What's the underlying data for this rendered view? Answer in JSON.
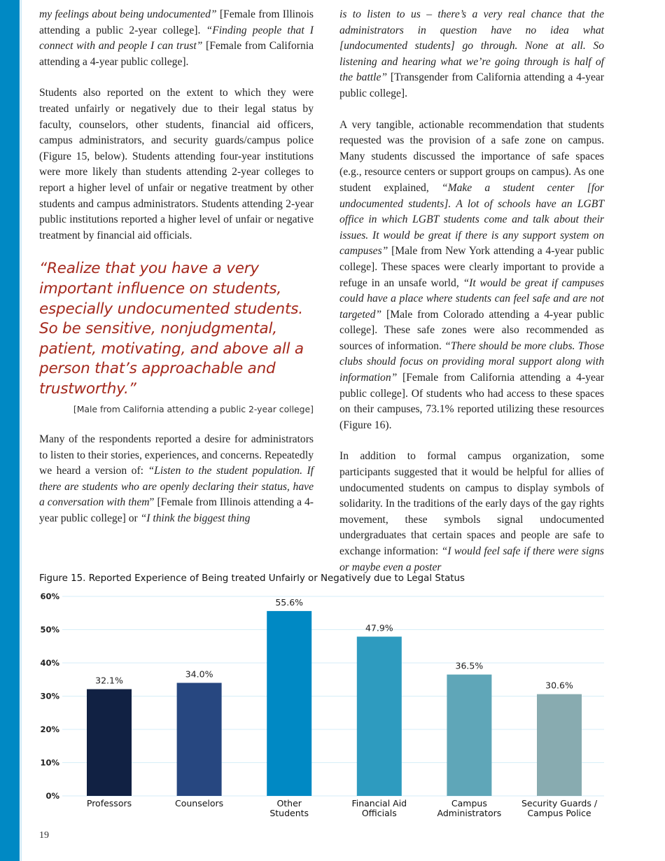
{
  "left_column": {
    "paragraphs": [
      [
        {
          "t": "my feelings about being undocumented”",
          "i": true
        },
        {
          "t": " [Female from Illinois attending a public 2-year college]. ",
          "i": false
        },
        {
          "t": "“Finding people that I connect with and people I can trust”",
          "i": true
        },
        {
          "t": " [Female from California attending a 4-year public college].",
          "i": false
        }
      ],
      [
        {
          "t": "Students also reported on the extent to which they were treated unfairly or negatively due to their legal status by faculty, counselors, other students, financial aid officers, campus administrators, and security guards/campus police (Figure 15, below). Students attending four-year institutions were more likely than students attending 2-year colleges to report a higher level of unfair or negative treatment by other students and campus administrators. Students attending 2-year public institutions reported a higher level of unfair or negative treatment by financial aid officials.",
          "i": false
        }
      ]
    ],
    "pull_quote": "“Realize that you have a very important influence on students, especially undocumented students. So be sensitive, nonjudgmental, patient, motivating, and above all a person that’s approachable and trustworthy.”",
    "pull_quote_attribution": "[Male from California attending a public 2-year college]",
    "paragraphs_after": [
      [
        {
          "t": "Many of the respondents reported a desire for administrators to listen to their stories, experiences, and concerns. Repeatedly we heard a version of: ",
          "i": false
        },
        {
          "t": "“Listen to the student population. If there are students who are openly declaring their status, have a conversation with them",
          "i": true
        },
        {
          "t": "” [Female from Illinois attending a 4-year public college] or ",
          "i": false
        },
        {
          "t": "“I think the biggest thing",
          "i": true
        }
      ]
    ]
  },
  "right_column": {
    "paragraphs": [
      [
        {
          "t": "is to listen to us – there’s a very real chance that the administrators in question have no idea what [undocumented students] go through. None at all. So listening and hearing what we’re going through is half of the battle”",
          "i": true
        },
        {
          "t": " [Transgender from California attending a 4-year public college].",
          "i": false
        }
      ],
      [
        {
          "t": "A very tangible, actionable recommendation that students requested was the provision of a safe zone on campus. Many students discussed the importance of safe spaces (e.g., resource centers or support groups on campus). As one student explained, ",
          "i": false
        },
        {
          "t": "“Make a student center [for undocumented students]. A lot of schools have an LGBT office in which LGBT students come and talk about their issues. It would be great if there is any support system on campuses”",
          "i": true
        },
        {
          "t": " [Male from New York attending a 4-year public college]. These spaces were clearly important to provide a refuge in an unsafe world, ",
          "i": false
        },
        {
          "t": "“It would be great if campuses could have a place where students can feel safe and are not targeted”",
          "i": true
        },
        {
          "t": " [Male from Colorado attending a 4-year public college]. These safe zones were also recommended as sources of information. ",
          "i": false
        },
        {
          "t": "“There should be more clubs. Those clubs should focus on providing moral support along with information”",
          "i": true
        },
        {
          "t": " [Female from California attending a 4-year public college]. Of students who had access to these spaces on their campuses, 73.1% reported utilizing these resources (Figure 16).",
          "i": false
        }
      ],
      [
        {
          "t": "In addition to formal campus organization, some participants suggested that it would be helpful for allies of undocumented students on campus to display symbols of solidarity. In the traditions of the early days of the gay rights movement, these symbols signal undocumented undergraduates that certain spaces and people are safe to exchange information: ",
          "i": false
        },
        {
          "t": "“I would feel safe if there were signs or maybe even a poster",
          "i": true
        }
      ]
    ]
  },
  "page_number": "19",
  "colors": {
    "sidebar": "#0089c4",
    "quote": "#a4281c",
    "gridline": "#d6eef8"
  },
  "chart_data": {
    "type": "bar",
    "title": "Figure 15. Reported Experience of Being treated Unfairly or Negatively due to Legal Status",
    "categories": [
      [
        "Professors"
      ],
      [
        "Counselors"
      ],
      [
        "Other",
        "Students"
      ],
      [
        "Financial Aid",
        "Officials"
      ],
      [
        "Campus",
        "Administrators"
      ],
      [
        "Security Guards /",
        "Campus Police"
      ]
    ],
    "values": [
      32.1,
      34.0,
      55.6,
      47.9,
      36.5,
      30.6
    ],
    "value_labels": [
      "32.1%",
      "34.0%",
      "55.6%",
      "47.9%",
      "36.5%",
      "30.6%"
    ],
    "bar_colors": [
      "#112143",
      "#274780",
      "#0089c4",
      "#2e9bbf",
      "#5fa6b8",
      "#88abb0"
    ],
    "yticks": [
      "0%",
      "10%",
      "20%",
      "30%",
      "40%",
      "50%",
      "60%"
    ],
    "ylim": [
      0,
      60
    ],
    "grid": true
  }
}
